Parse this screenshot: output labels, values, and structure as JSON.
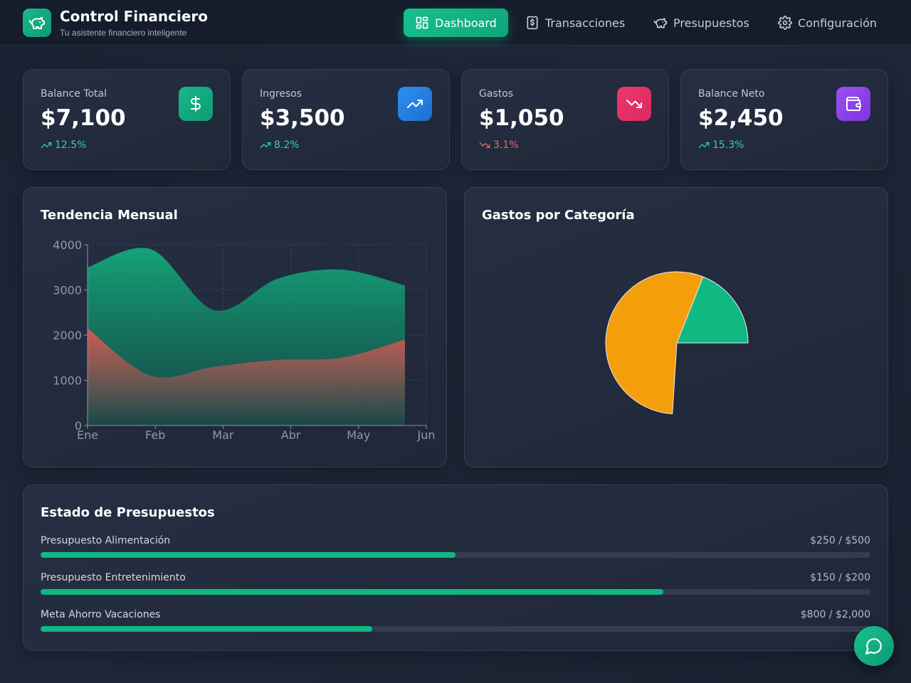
{
  "app": {
    "title": "Control Financiero",
    "subtitle": "Tu asistente financiero inteligente",
    "logo_icon": "piggy-bank-icon"
  },
  "nav": [
    {
      "label": "Dashboard",
      "icon": "dashboard-grid-icon",
      "active": true
    },
    {
      "label": "Transacciones",
      "icon": "dollar-receipt-icon",
      "active": false
    },
    {
      "label": "Presupuestos",
      "icon": "piggy-bank-icon",
      "active": false
    },
    {
      "label": "Configuración",
      "icon": "gear-icon",
      "active": false
    }
  ],
  "stats": [
    {
      "label": "Balance Total",
      "value": "$7,100",
      "change": "12.5%",
      "trend": "up",
      "icon": "dollar-icon",
      "color": "#10b981"
    },
    {
      "label": "Ingresos",
      "value": "$3,500",
      "change": "8.2%",
      "trend": "up",
      "icon": "trending-up-icon",
      "color": "#2b8ae6"
    },
    {
      "label": "Gastos",
      "value": "$1,050",
      "change": "3.1%",
      "trend": "down",
      "icon": "trending-down-icon",
      "color": "#e8336b"
    },
    {
      "label": "Balance Neto",
      "value": "$2,450",
      "change": "15.3%",
      "trend": "up",
      "icon": "wallet-icon",
      "color": "#9747f0"
    }
  ],
  "colors": {
    "up": "#34d399",
    "down": "#f06a6a",
    "accent": "#10b981"
  },
  "trend_panel": {
    "title": "Tendencia Mensual"
  },
  "category_panel": {
    "title": "Gastos por Categoría"
  },
  "chart_data": [
    {
      "type": "area",
      "title": "Tendencia Mensual",
      "categories": [
        "Ene",
        "Feb",
        "Mar",
        "Abr",
        "May",
        "Jun"
      ],
      "ylim": [
        0,
        4000
      ],
      "yticks": [
        0,
        1000,
        2000,
        3000,
        4000
      ],
      "grid": true,
      "series": [
        {
          "values": [
            3500,
            3900,
            2550,
            3250,
            3450,
            3100
          ],
          "color": "#10b981"
        },
        {
          "values": [
            2150,
            1100,
            1300,
            1450,
            1500,
            1900
          ],
          "color": "#ef5350"
        }
      ]
    },
    {
      "type": "pie",
      "title": "Gastos por Categoría",
      "slices": [
        {
          "value": 19,
          "color": "#10b981"
        },
        {
          "value": 55,
          "color": "#f59e0b"
        }
      ]
    }
  ],
  "budgets": {
    "title": "Estado de Presupuestos",
    "items": [
      {
        "name": "Presupuesto Alimentación",
        "amount": "$250 / $500",
        "progress": 0.5
      },
      {
        "name": "Presupuesto Entretenimiento",
        "amount": "$150 / $200",
        "progress": 0.75
      },
      {
        "name": "Meta Ahorro Vacaciones",
        "amount": "$800 / $2,000",
        "progress": 0.4
      }
    ]
  },
  "chat": {
    "icon": "chat-bubble-icon"
  }
}
